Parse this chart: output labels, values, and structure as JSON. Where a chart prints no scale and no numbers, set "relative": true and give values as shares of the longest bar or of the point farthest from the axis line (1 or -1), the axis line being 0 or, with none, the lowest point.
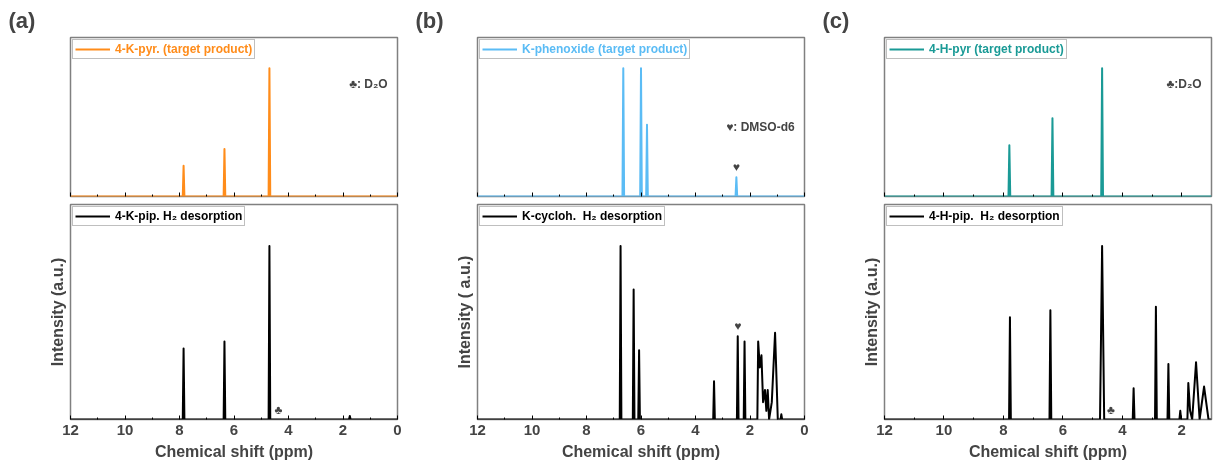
{
  "chart_data": [
    {
      "type": "line",
      "title": "(a)",
      "relative": true,
      "xlim": [
        12,
        0
      ],
      "xticks": [
        12,
        10,
        8,
        6,
        4,
        2,
        0
      ],
      "tick_labels": false,
      "legend": "top left",
      "annotations": [
        "♣: D₂O"
      ],
      "series": [
        {
          "name": "4-K-pyr. (target product)",
          "color": "#ff8c1a",
          "x": [
            12,
            7.88,
            7.85,
            7.82,
            6.38,
            6.35,
            6.32,
            4.73,
            4.7,
            4.67,
            0
          ],
          "values": [
            0,
            0,
            0.24,
            0,
            0,
            0.37,
            0,
            0,
            1,
            0,
            0
          ]
        }
      ]
    },
    {
      "type": "line",
      "relative": true,
      "xlim": [
        12,
        0
      ],
      "xticks": [
        12,
        10,
        8,
        6,
        4,
        2,
        0
      ],
      "tick_labels": "x",
      "legend": "top left",
      "xlabel": "Chemical shift (ppm)",
      "ylabel": "Intensity (a.u.)",
      "annotations": [
        "♣"
      ],
      "series": [
        {
          "name": "4-K-pip. H₂ desorption",
          "color": "#000000",
          "x": [
            12,
            7.88,
            7.85,
            7.82,
            6.38,
            6.35,
            6.32,
            4.73,
            4.7,
            4.67,
            1.78,
            1.75,
            1.72,
            0
          ],
          "values": [
            0,
            0,
            0.41,
            0,
            0,
            0.45,
            0,
            0,
            1,
            0,
            0,
            0.02,
            0,
            0
          ]
        }
      ]
    },
    {
      "type": "line",
      "title": "(b)",
      "relative": true,
      "xlim": [
        12,
        0
      ],
      "xticks": [
        12,
        10,
        8,
        6,
        4,
        2,
        0
      ],
      "tick_labels": false,
      "legend": "top left",
      "annotations": [
        "♥: DMSO-d6",
        {
          "text": "♥",
          "x": 2.5,
          "y": 0.15
        }
      ],
      "series": [
        {
          "name": "K-phenoxide (target product)",
          "color": "#5bbcf5",
          "x": [
            12,
            6.68,
            6.65,
            6.62,
            6.03,
            6.0,
            5.97,
            5.81,
            5.78,
            5.75,
            2.53,
            2.5,
            2.47,
            0
          ],
          "values": [
            0,
            0,
            1,
            0,
            0,
            1,
            0,
            0,
            0.56,
            0,
            0,
            0.15,
            0,
            0
          ]
        }
      ]
    },
    {
      "type": "line",
      "relative": true,
      "xlim": [
        12,
        0
      ],
      "xticks": [
        12,
        10,
        8,
        6,
        4,
        2,
        0
      ],
      "tick_labels": "x",
      "legend": "top left",
      "xlabel": "Chemical shift (ppm)",
      "ylabel": "Intensity ( a.u.)",
      "annotations": [
        {
          "text": "♥",
          "x": 2.45,
          "y": 0.48
        }
      ],
      "series": [
        {
          "name": "K-cycloh.  H₂ desorption",
          "color": "#000000",
          "x": [
            12,
            6.78,
            6.75,
            6.72,
            6.3,
            6.27,
            6.24,
            6.1,
            6.07,
            6.04,
            3.35,
            3.32,
            3.29,
            2.48,
            2.45,
            2.42,
            2.23,
            2.2,
            2.17,
            1.73,
            1.7,
            1.64,
            1.58,
            1.52,
            1.45,
            1.4,
            1.35,
            1.3,
            1.2,
            1.08,
            0.98,
            0.88,
            0.85,
            0.82,
            0
          ],
          "values": [
            0,
            0,
            1,
            0,
            0,
            0.75,
            0,
            0,
            0.4,
            0,
            0,
            0.22,
            0,
            0,
            0.48,
            0,
            0,
            0.45,
            0,
            0,
            0.45,
            0.3,
            0.37,
            0.1,
            0.17,
            0.05,
            0.17,
            0,
            0.1,
            0.5,
            0,
            0,
            0.03,
            0,
            0
          ]
        }
      ]
    },
    {
      "type": "line",
      "title": "(c)",
      "relative": true,
      "xlim": [
        12,
        1.0
      ],
      "xticks": [
        12,
        10,
        8,
        6,
        4,
        2
      ],
      "tick_labels": false,
      "legend": "top left",
      "annotations": [
        "♣:D₂O"
      ],
      "series": [
        {
          "name": "4-H-pyr (target product)",
          "color": "#1a9a96",
          "x": [
            12,
            7.83,
            7.8,
            7.77,
            6.38,
            6.35,
            6.32,
            4.71,
            4.68,
            4.65,
            1.0
          ],
          "values": [
            0,
            0,
            0.4,
            0,
            0,
            0.61,
            0,
            0,
            1,
            0,
            0
          ]
        }
      ]
    },
    {
      "type": "line",
      "relative": true,
      "xlim": [
        12,
        1.0
      ],
      "xticks": [
        12,
        10,
        8,
        6,
        4,
        2
      ],
      "tick_labels": "x",
      "legend": "top left",
      "xlabel": "Chemical shift (ppm)",
      "ylabel": "Intensity (a.u.)",
      "annotations": [
        "♣"
      ],
      "series": [
        {
          "name": "4-H-pip.  H₂ desorption",
          "color": "#000000",
          "x": [
            12,
            7.81,
            7.78,
            7.75,
            6.45,
            6.42,
            6.39,
            4.75,
            4.68,
            4.61,
            3.65,
            3.62,
            3.59,
            2.9,
            2.87,
            2.84,
            2.48,
            2.45,
            2.42,
            2.08,
            2.05,
            2.02,
            1.81,
            1.78,
            1.72,
            1.65,
            1.52,
            1.4,
            1.25,
            1.1,
            1.0
          ],
          "values": [
            0,
            0,
            0.59,
            0,
            0,
            0.63,
            0,
            0,
            1,
            0,
            0,
            0.18,
            0,
            0,
            0.65,
            0,
            0,
            0.32,
            0,
            0,
            0.05,
            0,
            0,
            0.21,
            0.05,
            0,
            0.33,
            0,
            0.19,
            0,
            0
          ]
        }
      ]
    }
  ]
}
